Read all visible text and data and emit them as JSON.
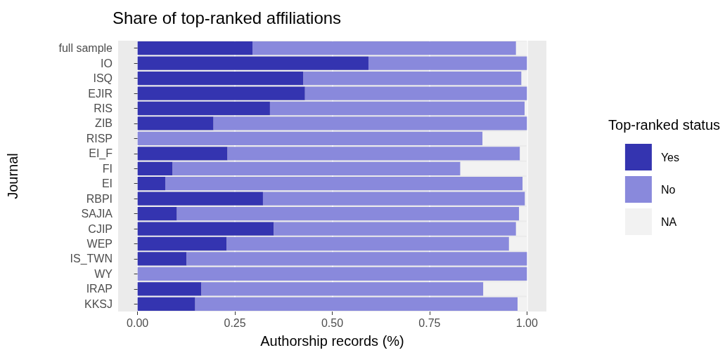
{
  "chart_data": {
    "type": "bar",
    "orientation": "horizontal",
    "stacked": true,
    "title": "Share of top-ranked affiliations",
    "xlabel": "Authorship records (%)",
    "ylabel": "Journal",
    "legend_title": "Top-ranked status",
    "categories": [
      "full sample",
      "IO",
      "ISQ",
      "EJIR",
      "RIS",
      "ZIB",
      "RISP",
      "EI_F",
      "FI",
      "EI",
      "RBPI",
      "SAJIA",
      "CJIP",
      "WEP",
      "IS_TWN",
      "WY",
      "IRAP",
      "KKSJ"
    ],
    "series": [
      {
        "name": "Yes",
        "color": "#3434b0",
        "values": [
          0.295,
          0.593,
          0.426,
          0.43,
          0.34,
          0.195,
          0,
          0.231,
          0.09,
          0.071,
          0.322,
          0.101,
          0.35,
          0.229,
          0.126,
          0,
          0.164,
          0.148
        ]
      },
      {
        "name": "No",
        "color": "#8989dc",
        "values": [
          0.677,
          0.407,
          0.56,
          0.57,
          0.654,
          0.805,
          0.886,
          0.751,
          0.739,
          0.918,
          0.673,
          0.879,
          0.622,
          0.725,
          0.874,
          1,
          0.724,
          0.828
        ]
      },
      {
        "name": "NA",
        "color": "#f2f2f2",
        "values": [
          0.028,
          0,
          0.014,
          0,
          0.006,
          0,
          0.114,
          0.018,
          0.171,
          0.011,
          0.005,
          0.02,
          0.028,
          0.046,
          0,
          0,
          0.112,
          0.024
        ]
      }
    ],
    "xlim": [
      -0.05,
      1.05
    ],
    "xticks": [
      {
        "value": 0,
        "label": "0.00"
      },
      {
        "value": 0.25,
        "label": "0.25"
      },
      {
        "value": 0.5,
        "label": "0.50"
      },
      {
        "value": 0.75,
        "label": "0.75"
      },
      {
        "value": 1,
        "label": "1.00"
      }
    ],
    "grid": "x",
    "legend": "right"
  }
}
